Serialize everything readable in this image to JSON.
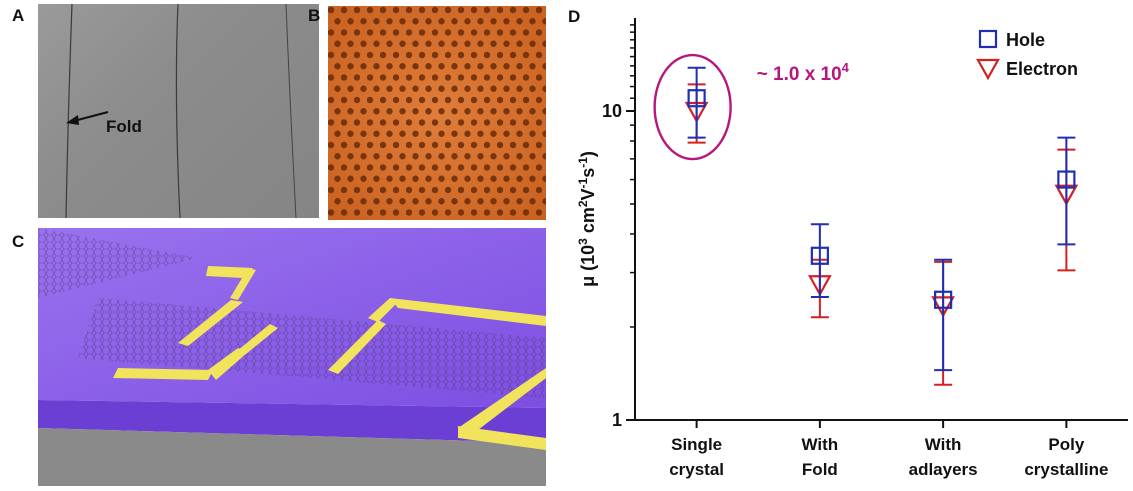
{
  "figure": {
    "panel_letters": {
      "a": "A",
      "b": "B",
      "c": "C",
      "d": "D"
    },
    "panel_a": {
      "fold_label": "Fold"
    },
    "colors": {
      "hole": "#1f2fb5",
      "electron": "#d42020",
      "highlight": "#b5177f",
      "substrate": "#8a5ce8",
      "electrode": "#f2e35c"
    }
  },
  "chart_data": {
    "type": "scatter",
    "title": "",
    "ylabel_parts": [
      "μ (10",
      "3",
      " cm",
      "2",
      "V",
      "-1",
      "s",
      "-1",
      ")"
    ],
    "yscale": "log",
    "ylim": [
      1,
      20
    ],
    "yticks": [
      1,
      10
    ],
    "categories": [
      [
        "Single",
        "crystal"
      ],
      [
        "With",
        "Fold"
      ],
      [
        "With",
        "adlayers"
      ],
      [
        "Poly",
        "crystalline"
      ]
    ],
    "series": [
      {
        "name": "Hole",
        "marker": "square",
        "color": "#1f2fb5",
        "values": [
          11.0,
          3.4,
          2.45,
          6.0
        ],
        "err_low": [
          8.2,
          2.5,
          1.45,
          3.7
        ],
        "err_high": [
          13.8,
          4.3,
          3.3,
          8.2
        ]
      },
      {
        "name": "Electron",
        "marker": "triangle-down",
        "color": "#d42020",
        "values": [
          10.0,
          2.75,
          2.35,
          5.4
        ],
        "err_low": [
          7.9,
          2.15,
          1.3,
          3.05
        ],
        "err_high": [
          12.2,
          3.3,
          3.25,
          7.5
        ]
      }
    ],
    "annotation": {
      "text_main": "~ 1.0 x 10",
      "text_sup": "4",
      "category_index": 0
    },
    "legend": {
      "placement": "top-right"
    }
  }
}
